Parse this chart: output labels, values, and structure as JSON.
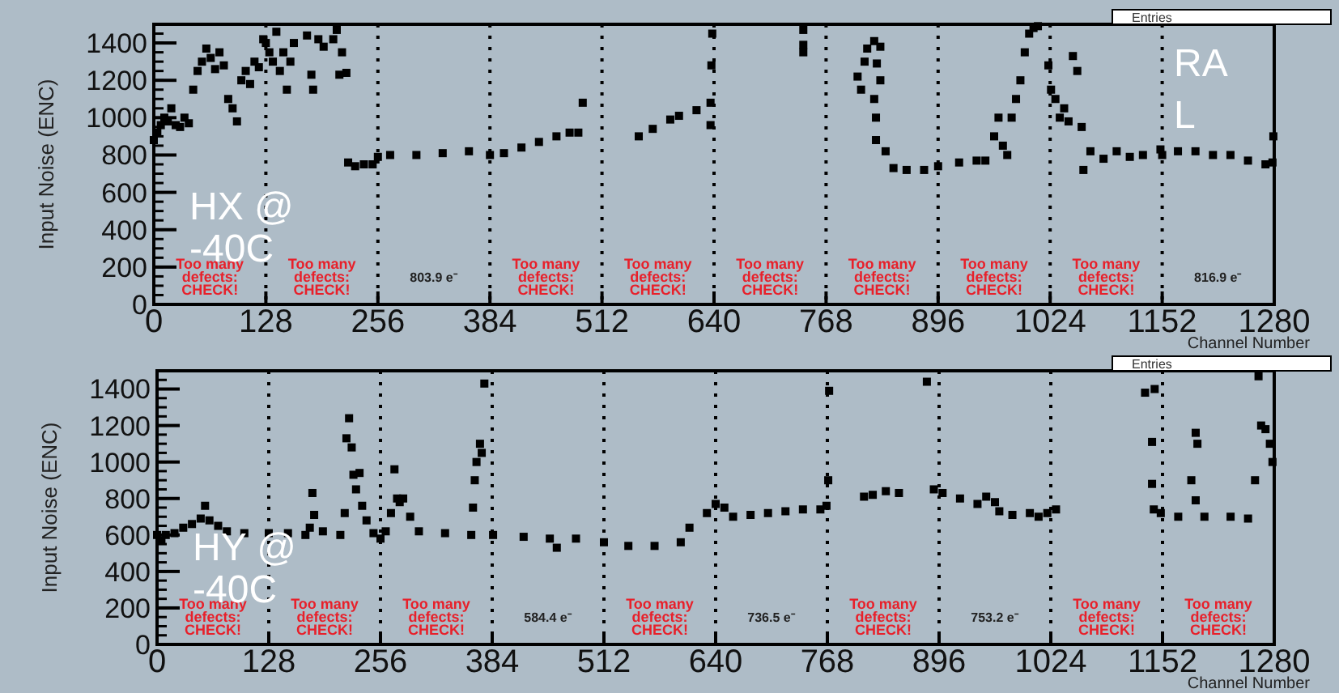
{
  "chart_data": [
    {
      "type": "scatter",
      "xlabel": "Channel Number",
      "ylabel": "Input Noise (ENC)",
      "xlim": [
        0,
        1280
      ],
      "ylim": [
        0,
        1500
      ],
      "xticks": [
        0,
        128,
        256,
        384,
        512,
        640,
        768,
        896,
        1024,
        1152,
        1280
      ],
      "yticks": [
        0,
        200,
        400,
        600,
        800,
        1000,
        1200,
        1400
      ],
      "marker": "square",
      "series": [
        {
          "color": "#000000",
          "x": [
            0,
            4,
            8,
            12,
            16,
            20,
            25,
            30,
            35,
            40,
            45,
            50,
            55,
            60,
            65,
            70,
            75,
            80,
            85,
            90,
            95,
            100,
            105,
            110,
            115,
            120,
            125,
            128,
            132,
            136,
            140,
            144,
            148,
            152,
            156,
            160,
            175,
            180,
            182,
            188,
            194,
            205,
            209,
            212,
            215,
            220,
            222,
            230,
            240,
            250,
            256,
            270,
            300,
            330,
            360,
            384,
            400,
            420,
            440,
            460,
            475,
            485,
            490,
            554,
            570,
            590,
            600,
            620,
            636,
            637,
            638,
            636,
            742,
            742,
            742,
            804,
            808,
            812,
            815,
            823,
            826,
            830,
            823,
            825,
            825,
            830,
            836,
            845,
            860,
            880,
            896,
            920,
            940,
            950,
            960,
            965,
            970,
            975,
            980,
            985,
            990,
            995,
            1000,
            1005,
            1010,
            1022,
            1025,
            1030,
            1035,
            1040,
            1045,
            1050,
            1055,
            1060,
            1062,
            1070,
            1085,
            1100,
            1115,
            1130,
            1150,
            1152,
            1170,
            1190,
            1210,
            1230,
            1250,
            1270,
            1278,
            1279
          ],
          "values": [
            880,
            920,
            960,
            1000,
            980,
            1050,
            960,
            950,
            1000,
            970,
            1150,
            1250,
            1300,
            1370,
            1320,
            1260,
            1350,
            1280,
            1100,
            1050,
            980,
            1200,
            1250,
            1180,
            1300,
            1270,
            1420,
            1400,
            1350,
            1300,
            1460,
            1250,
            1350,
            1150,
            1300,
            1400,
            1440,
            1230,
            1150,
            1420,
            1380,
            1420,
            1470,
            1230,
            1350,
            1240,
            760,
            740,
            750,
            750,
            790,
            800,
            800,
            810,
            820,
            800,
            810,
            840,
            870,
            900,
            920,
            920,
            1080,
            900,
            940,
            990,
            1010,
            1040,
            1080,
            1280,
            1450,
            960,
            1470,
            1390,
            1350,
            1220,
            1150,
            1300,
            1370,
            1410,
            1290,
            1200,
            1100,
            1000,
            880,
            1380,
            820,
            730,
            720,
            720,
            740,
            760,
            770,
            770,
            900,
            1000,
            850,
            800,
            1000,
            1100,
            1200,
            1350,
            1450,
            1480,
            1490,
            1280,
            1150,
            1100,
            1000,
            1050,
            980,
            1330,
            1250,
            950,
            720,
            820,
            780,
            820,
            790,
            800,
            830,
            800,
            820,
            820,
            800,
            800,
            770,
            750,
            760,
            900
          ]
        }
      ],
      "ref_lines": [
        {
          "axis": "x",
          "value": 128,
          "line_style": "dotted",
          "color": "#000000"
        },
        {
          "axis": "x",
          "value": 256,
          "line_style": "dotted",
          "color": "#000000"
        },
        {
          "axis": "x",
          "value": 384,
          "line_style": "dotted",
          "color": "#000000"
        },
        {
          "axis": "x",
          "value": 512,
          "line_style": "dotted",
          "color": "#000000"
        },
        {
          "axis": "x",
          "value": 640,
          "line_style": "dotted",
          "color": "#000000"
        },
        {
          "axis": "x",
          "value": 768,
          "line_style": "dotted",
          "color": "#000000"
        },
        {
          "axis": "x",
          "value": 896,
          "line_style": "dotted",
          "color": "#000000"
        },
        {
          "axis": "x",
          "value": 1024,
          "line_style": "dotted",
          "color": "#000000"
        },
        {
          "axis": "x",
          "value": 1152,
          "line_style": "dotted",
          "color": "#000000"
        }
      ],
      "annotations": [
        "Too many\ndefects:\nCHECK!",
        "Too many\ndefects:\nCHECK!",
        "803.9 e⁻",
        "Too many\ndefects:\nCHECK!",
        "Too many\ndefects:\nCHECK!",
        "Too many\ndefects:\nCHECK!",
        "Too many\ndefects:\nCHECK!",
        "Too many\ndefects:\nCHECK!",
        "Too many\ndefects:\nCHECK!",
        "816.9 e⁻",
        "HX @\n-40C",
        "RA\nL",
        "Entries"
      ]
    },
    {
      "type": "scatter",
      "xlabel": "Channel Number",
      "ylabel": "Input Noise (ENC)",
      "xlim": [
        0,
        1280
      ],
      "ylim": [
        0,
        1500
      ],
      "xticks": [
        0,
        128,
        256,
        384,
        512,
        640,
        768,
        896,
        1024,
        1152,
        1280
      ],
      "yticks": [
        0,
        200,
        400,
        600,
        800,
        1000,
        1200,
        1400
      ],
      "marker": "square",
      "series": [
        {
          "color": "#000000",
          "x": [
            0,
            5,
            10,
            20,
            30,
            40,
            50,
            55,
            60,
            70,
            80,
            100,
            128,
            150,
            170,
            175,
            178,
            180,
            190,
            210,
            215,
            217,
            220,
            223,
            225,
            228,
            232,
            235,
            240,
            248,
            256,
            262,
            268,
            272,
            275,
            278,
            282,
            290,
            300,
            330,
            360,
            362,
            364,
            366,
            370,
            372,
            375,
            385,
            420,
            450,
            458,
            480,
            512,
            540,
            570,
            600,
            610,
            630,
            640,
            650,
            660,
            680,
            700,
            720,
            740,
            760,
            767,
            769,
            770,
            810,
            820,
            835,
            850,
            882,
            890,
            900,
            920,
            940,
            950,
            960,
            965,
            980,
            1000,
            1010,
            1020,
            1030,
            1132,
            1143,
            1140,
            1140,
            1142,
            1150,
            1170,
            1185,
            1190,
            1192,
            1190,
            1200,
            1230,
            1250,
            1258,
            1262,
            1265,
            1270,
            1275,
            1278
          ],
          "values": [
            600,
            570,
            600,
            610,
            640,
            660,
            690,
            760,
            680,
            650,
            620,
            610,
            610,
            610,
            600,
            640,
            830,
            710,
            620,
            600,
            720,
            1130,
            1240,
            1080,
            930,
            850,
            940,
            760,
            680,
            610,
            580,
            620,
            720,
            960,
            800,
            780,
            800,
            700,
            620,
            610,
            600,
            750,
            900,
            1000,
            1100,
            1050,
            1430,
            600,
            590,
            580,
            530,
            580,
            560,
            540,
            540,
            560,
            640,
            720,
            770,
            750,
            700,
            710,
            720,
            730,
            740,
            740,
            760,
            900,
            1390,
            810,
            820,
            840,
            830,
            1440,
            850,
            830,
            800,
            770,
            810,
            780,
            730,
            710,
            720,
            700,
            720,
            740,
            1380,
            1400,
            1110,
            880,
            740,
            720,
            700,
            900,
            1160,
            1100,
            790,
            700,
            700,
            690,
            900,
            1470,
            1200,
            1180,
            1100,
            1000
          ]
        }
      ],
      "ref_lines": [
        {
          "axis": "x",
          "value": 128,
          "line_style": "dotted",
          "color": "#000000"
        },
        {
          "axis": "x",
          "value": 256,
          "line_style": "dotted",
          "color": "#000000"
        },
        {
          "axis": "x",
          "value": 384,
          "line_style": "dotted",
          "color": "#000000"
        },
        {
          "axis": "x",
          "value": 512,
          "line_style": "dotted",
          "color": "#000000"
        },
        {
          "axis": "x",
          "value": 640,
          "line_style": "dotted",
          "color": "#000000"
        },
        {
          "axis": "x",
          "value": 768,
          "line_style": "dotted",
          "color": "#000000"
        },
        {
          "axis": "x",
          "value": 896,
          "line_style": "dotted",
          "color": "#000000"
        },
        {
          "axis": "x",
          "value": 1024,
          "line_style": "dotted",
          "color": "#000000"
        },
        {
          "axis": "x",
          "value": 1152,
          "line_style": "dotted",
          "color": "#000000"
        }
      ],
      "annotations": [
        "Too many\ndefects:\nCHECK!",
        "Too many\ndefects:\nCHECK!",
        "Too many\ndefects:\nCHECK!",
        "584.4 e⁻",
        "Too many\ndefects:\nCHECK!",
        "736.5 e⁻",
        "Too many\ndefects:\nCHECK!",
        "753.2 e⁻",
        "Too many\ndefects:\nCHECK!",
        "Too many\ndefects:\nCHECK!",
        "HY @\n-40C",
        "Entries"
      ]
    }
  ]
}
